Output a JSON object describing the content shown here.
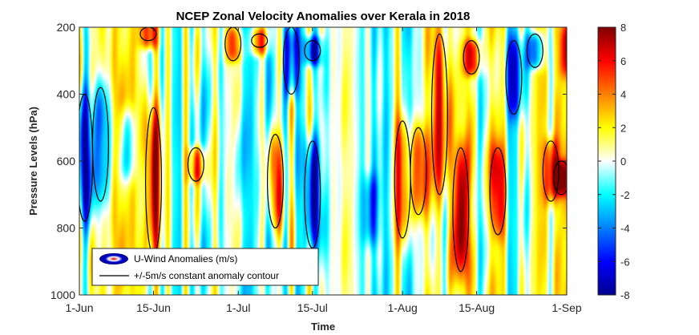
{
  "chart_data": {
    "type": "heatmap",
    "title": "NCEP Zonal Velocity Anomalies over Kerala in 2018",
    "xlabel": "Time",
    "ylabel": "Pressure Levels (hPa)",
    "x_ticks": [
      "1-Jun",
      "15-Jun",
      "1-Jul",
      "15-Jul",
      "1-Aug",
      "15-Aug",
      "1-Sep"
    ],
    "x_tick_days": [
      0,
      14,
      30,
      44,
      61,
      75,
      92
    ],
    "xlim_days": [
      0,
      92
    ],
    "y_ticks": [
      200,
      400,
      600,
      800,
      1000
    ],
    "ylim": [
      200,
      1000
    ],
    "y_reversed": true,
    "colorbar": {
      "range": [
        -8,
        8
      ],
      "ticks": [
        -8,
        -6,
        -4,
        -2,
        0,
        2,
        4,
        6,
        8
      ],
      "colormap": "jet"
    },
    "contour_levels": [
      -5,
      5
    ],
    "legend": {
      "location": "bottom-left",
      "entries": [
        "U-Wind Anomalies (m/s)",
        "+/-5m/s constant anomaly contour"
      ]
    },
    "anomaly_features": [
      {
        "day": 1,
        "p_top": 400,
        "p_bottom": 780,
        "value": -6
      },
      {
        "day": 4,
        "p_top": 380,
        "p_bottom": 720,
        "value": -5.5
      },
      {
        "day": 9,
        "p_top": 450,
        "p_bottom": 650,
        "value": -4
      },
      {
        "day": 14,
        "p_top": 440,
        "p_bottom": 880,
        "value": 6.5
      },
      {
        "day": 13,
        "p_top": 200,
        "p_bottom": 240,
        "value": 6
      },
      {
        "day": 22,
        "p_top": 560,
        "p_bottom": 660,
        "value": 5
      },
      {
        "day": 29,
        "p_top": 200,
        "p_bottom": 300,
        "value": 5
      },
      {
        "day": 34,
        "p_top": 220,
        "p_bottom": 260,
        "value": 6
      },
      {
        "day": 37,
        "p_top": 520,
        "p_bottom": 800,
        "value": 5
      },
      {
        "day": 40,
        "p_top": 200,
        "p_bottom": 400,
        "value": -6
      },
      {
        "day": 44,
        "p_top": 240,
        "p_bottom": 300,
        "value": -6
      },
      {
        "day": 44,
        "p_top": 540,
        "p_bottom": 860,
        "value": -6.5
      },
      {
        "day": 55,
        "p_top": 650,
        "p_bottom": 840,
        "value": -4
      },
      {
        "day": 61,
        "p_top": 480,
        "p_bottom": 830,
        "value": 5.5
      },
      {
        "day": 64,
        "p_top": 500,
        "p_bottom": 760,
        "value": 5
      },
      {
        "day": 68,
        "p_top": 220,
        "p_bottom": 700,
        "value": 6
      },
      {
        "day": 72,
        "p_top": 560,
        "p_bottom": 930,
        "value": 6.5
      },
      {
        "day": 74,
        "p_top": 240,
        "p_bottom": 340,
        "value": 6
      },
      {
        "day": 79,
        "p_top": 560,
        "p_bottom": 820,
        "value": 5
      },
      {
        "day": 82,
        "p_top": 240,
        "p_bottom": 460,
        "value": -5
      },
      {
        "day": 86,
        "p_top": 220,
        "p_bottom": 320,
        "value": -5.5
      },
      {
        "day": 89,
        "p_top": 540,
        "p_bottom": 720,
        "value": 5.5
      },
      {
        "day": 92,
        "p_top": 200,
        "p_bottom": 340,
        "value": 4
      },
      {
        "day": 91,
        "p_top": 600,
        "p_bottom": 700,
        "value": 5
      }
    ]
  }
}
